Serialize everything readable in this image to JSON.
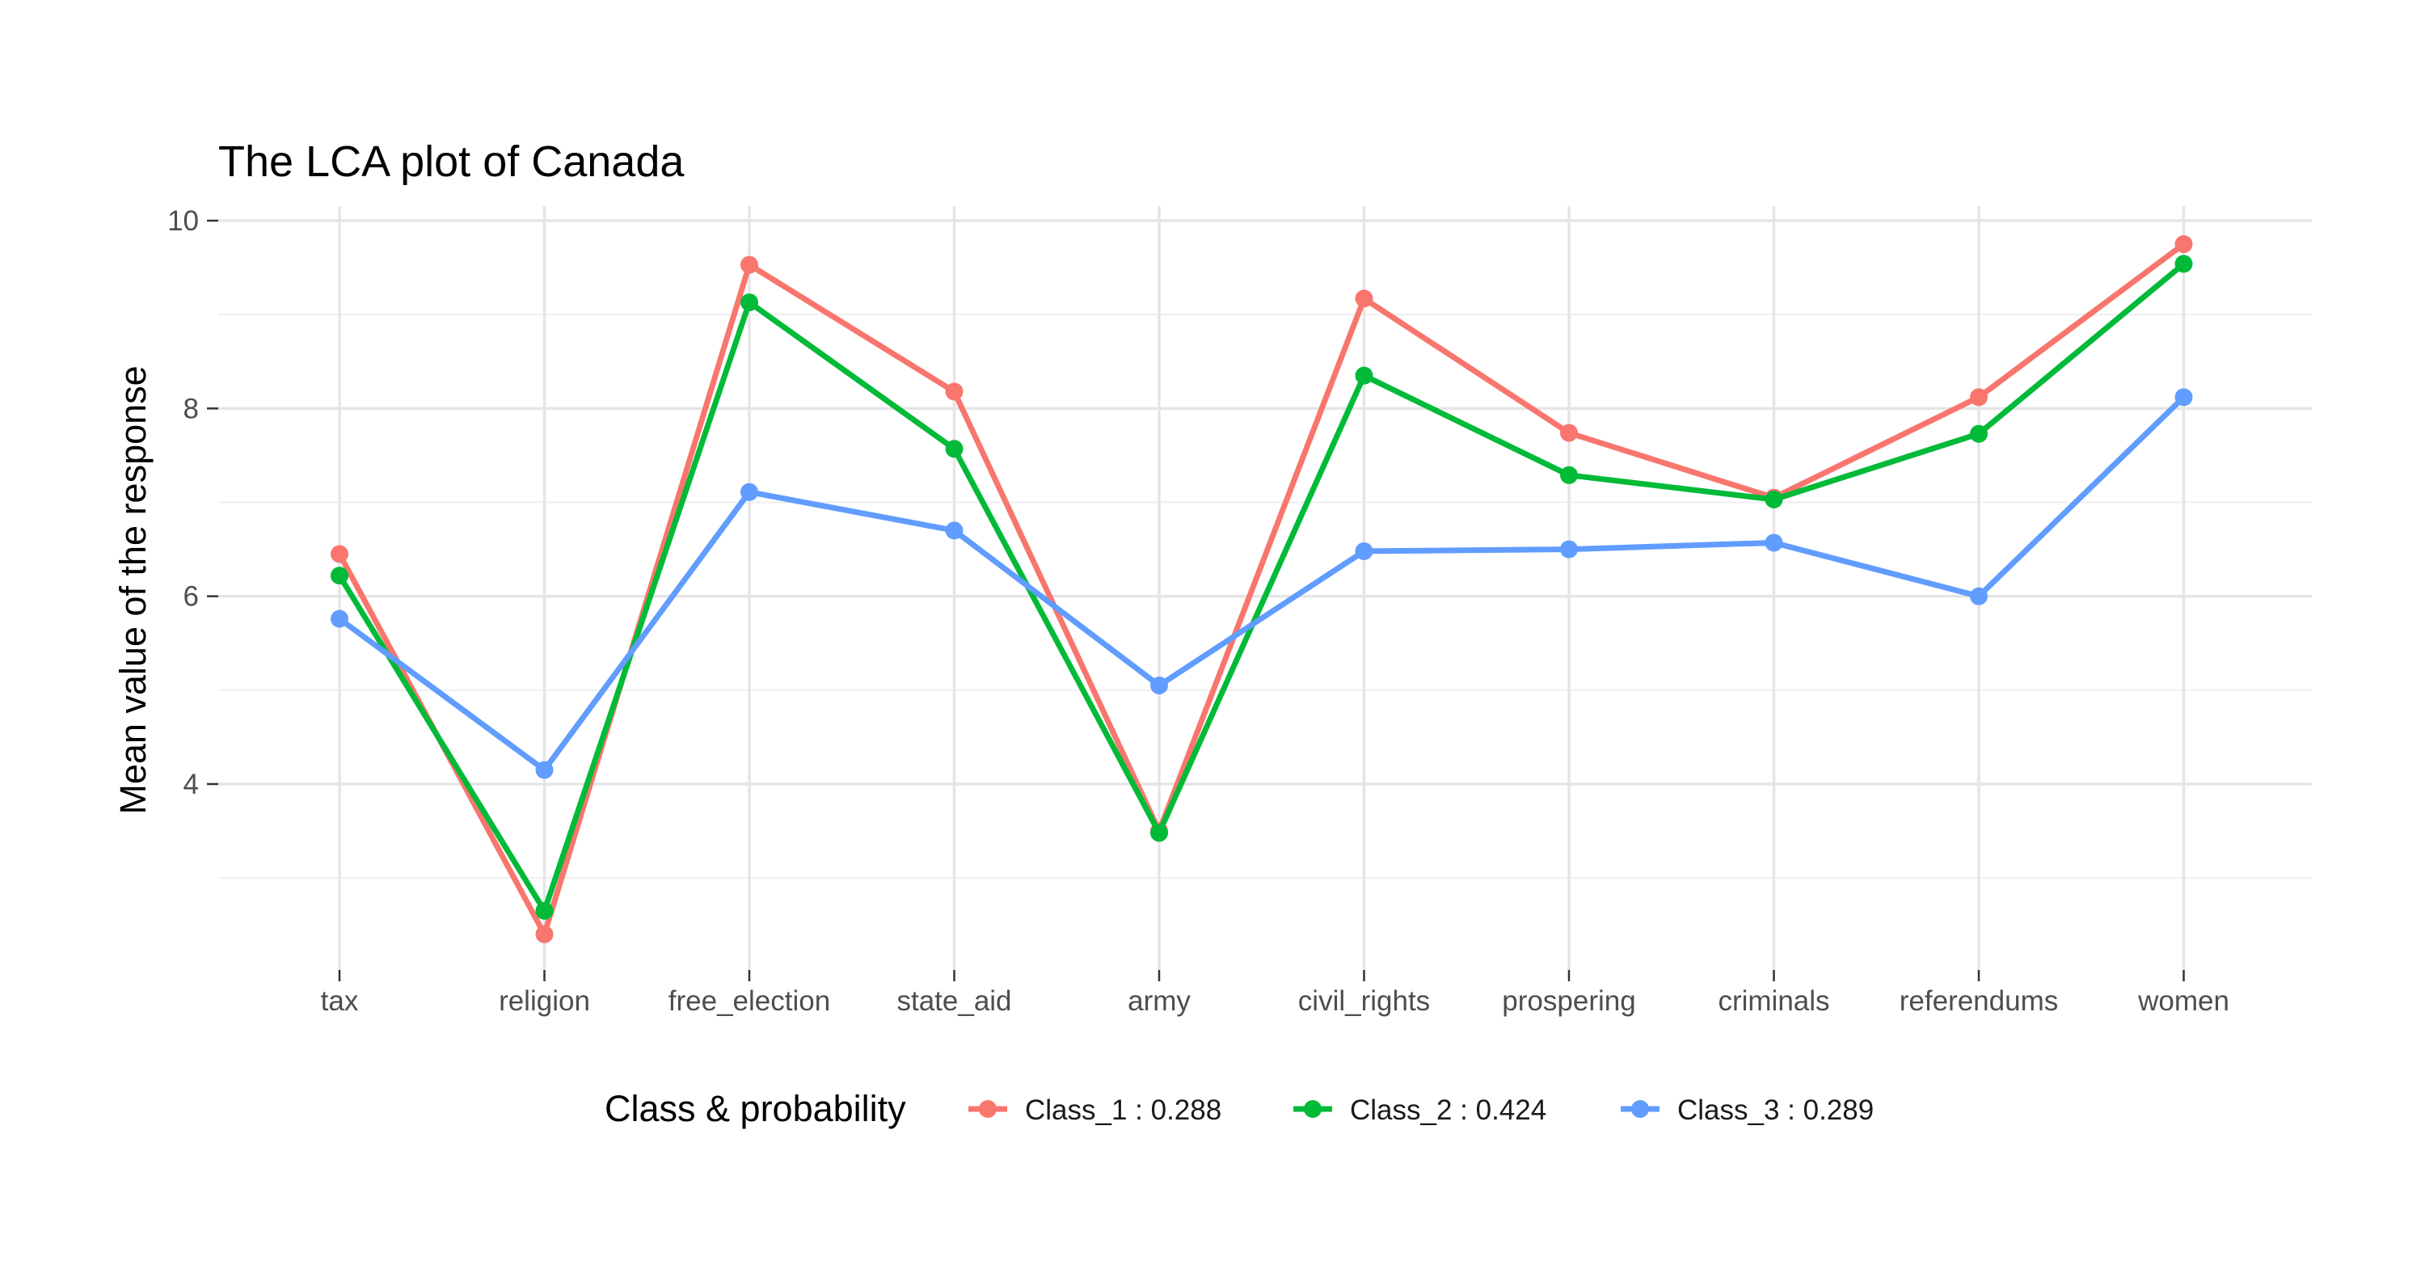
{
  "chart_data": {
    "type": "line",
    "title": "The LCA plot of Canada",
    "xlabel": "",
    "ylabel": "Mean value of the response",
    "categories": [
      "tax",
      "religion",
      "free_election",
      "state_aid",
      "army",
      "civil_rights",
      "prospering",
      "criminals",
      "referendums",
      "women"
    ],
    "ylim": [
      2.0,
      10.2
    ],
    "yticks": [
      4,
      6,
      8,
      10
    ],
    "ytick_labels": [
      "4",
      "6",
      "8",
      "10"
    ],
    "grid": true,
    "legend": {
      "title": "Class & probability",
      "position": "bottom"
    },
    "series": [
      {
        "name": "Class_1 : 0.288",
        "color": "#F8766D",
        "values": [
          6.45,
          2.4,
          9.53,
          8.18,
          3.5,
          9.17,
          7.74,
          7.05,
          8.12,
          9.75
        ]
      },
      {
        "name": "Class_2 : 0.424",
        "color": "#00BA38",
        "values": [
          6.22,
          2.65,
          9.13,
          7.57,
          3.48,
          8.35,
          7.29,
          7.03,
          7.73,
          9.54
        ]
      },
      {
        "name": "Class_3 : 0.289",
        "color": "#619CFF",
        "values": [
          5.76,
          4.15,
          7.11,
          6.7,
          5.05,
          6.48,
          6.5,
          6.57,
          6.0,
          8.12
        ]
      }
    ]
  }
}
